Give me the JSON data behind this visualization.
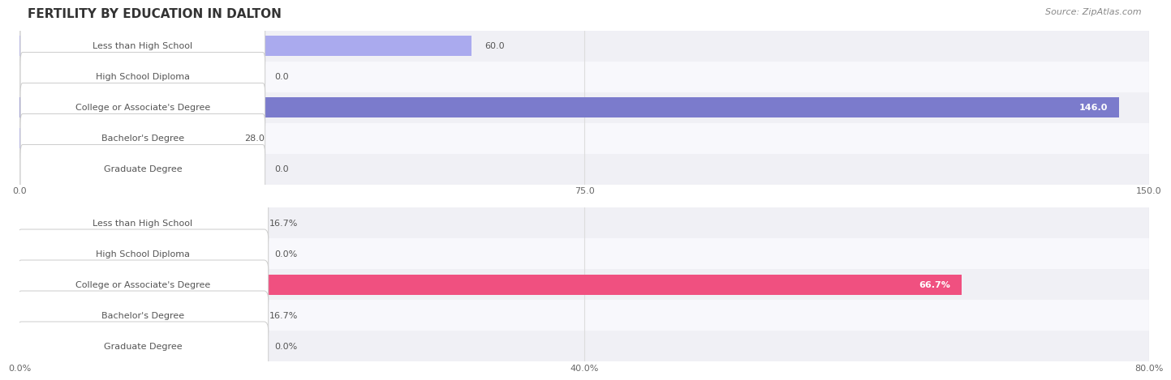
{
  "title": "FERTILITY BY EDUCATION IN DALTON",
  "source": "Source: ZipAtlas.com",
  "top_chart": {
    "categories": [
      "Less than High School",
      "High School Diploma",
      "College or Associate's Degree",
      "Bachelor's Degree",
      "Graduate Degree"
    ],
    "values": [
      60.0,
      0.0,
      146.0,
      28.0,
      0.0
    ],
    "bar_color_normal": "#aaaaee",
    "bar_color_highlight": "#7b7bcc",
    "xlim": [
      0,
      150
    ],
    "xticks": [
      0.0,
      75.0,
      150.0
    ],
    "value_inside_threshold": 120
  },
  "bottom_chart": {
    "categories": [
      "Less than High School",
      "High School Diploma",
      "College or Associate's Degree",
      "Bachelor's Degree",
      "Graduate Degree"
    ],
    "values": [
      16.7,
      0.0,
      66.7,
      16.7,
      0.0
    ],
    "bar_color_normal": "#ffaac8",
    "bar_color_highlight": "#f05080",
    "xlim": [
      0,
      80
    ],
    "xticks": [
      0.0,
      40.0,
      80.0
    ],
    "value_inside_threshold": 60,
    "value_format": "%"
  },
  "label_box_color": "#ffffff",
  "label_text_color": "#555555",
  "title_color": "#333333",
  "source_color": "#888888",
  "title_fontsize": 11,
  "label_fontsize": 8,
  "value_fontsize": 8,
  "axis_fontsize": 8,
  "source_fontsize": 8,
  "row_colors": [
    "#f0f0f5",
    "#f8f8fc"
  ],
  "bar_height": 0.65
}
